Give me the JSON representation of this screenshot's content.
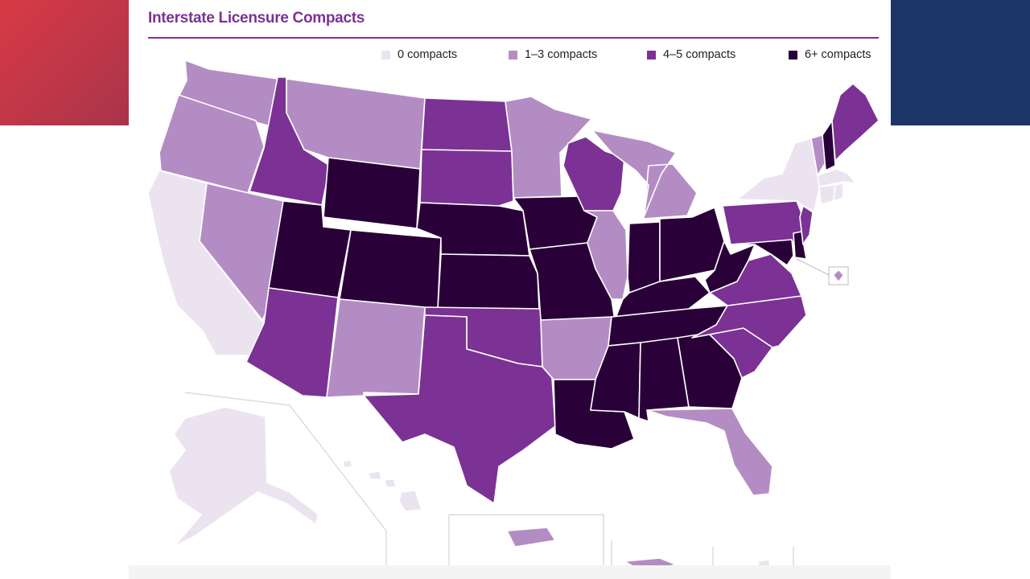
{
  "title": "Interstate Licensure Compacts",
  "legend": [
    {
      "label": "0 compacts",
      "color": "#ebe4f0"
    },
    {
      "label": "1–3 compacts",
      "color": "#b48cc4"
    },
    {
      "label": "4–5 compacts",
      "color": "#7b3294"
    },
    {
      "label": "6+ compacts",
      "color": "#2a0038"
    }
  ],
  "colors": {
    "accent": "#7b3294",
    "corner_left": "#d93a45",
    "corner_right": "#1b3566"
  },
  "states": {
    "WA": "1-3",
    "OR": "1-3",
    "CA": "0",
    "NV": "1-3",
    "ID": "4-5",
    "MT": "1-3",
    "WY": "6+",
    "UT": "6+",
    "AZ": "4-5",
    "CO": "6+",
    "NM": "1-3",
    "ND": "4-5",
    "SD": "4-5",
    "NE": "6+",
    "KS": "6+",
    "OK": "4-5",
    "TX": "4-5",
    "MN": "1-3",
    "IA": "6+",
    "MO": "6+",
    "AR": "1-3",
    "LA": "6+",
    "WI": "4-5",
    "IL": "1-3",
    "MI": "1-3",
    "IN": "6+",
    "OH": "6+",
    "KY": "6+",
    "TN": "6+",
    "MS": "6+",
    "AL": "6+",
    "GA": "6+",
    "FL": "1-3",
    "SC": "4-5",
    "NC": "4-5",
    "VA": "4-5",
    "WV": "6+",
    "PA": "4-5",
    "NY": "0",
    "VT": "1-3",
    "NH": "6+",
    "ME": "4-5",
    "MA": "0",
    "CT": "0",
    "RI": "0",
    "NJ": "4-5",
    "DE": "6+",
    "MD": "6+",
    "DC": "1-3",
    "AK": "0",
    "HI": "0",
    "PR": "1-3",
    "VI": "1-3",
    "GU": "0"
  }
}
